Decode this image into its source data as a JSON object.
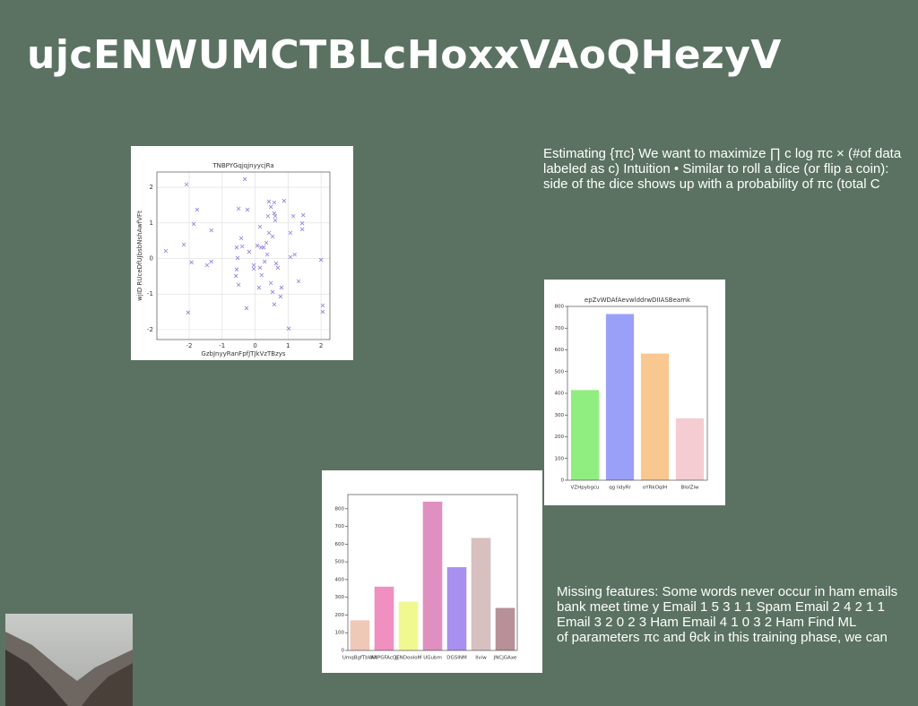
{
  "title": "ujcENWUMCTBLcHoxxVAoQHezyV",
  "paragraphs": [
    {
      "lines": [
        "Estimating {πc} We want to maximize ∏ c log πc × (#of data",
        "labeled as c) Intuition • Similar to roll a dice (or flip a coin):",
        "side of the dice shows up with a probability of πc (total C"
      ]
    },
    {
      "lines": [
        "Missing features: Some words never occur in ham emails",
        "bank meet time y Email 1 5 3 1 1 Spam Email 2 4 2 1 1",
        "Email 3 2 0 2 3 Ham Email 4 1 0 3 2 Ham Find ML",
        "of parameters πc and θck in this training phase, we can"
      ]
    }
  ],
  "chart_data": [
    {
      "type": "scatter",
      "title": "TNBPYGqjqjnyycjRa",
      "x_label": "GzbJnyyRanFpfJTJkVzTBzys",
      "y_label": "wjID RUceDfUJbsbNshAwfVFt",
      "color": "#8c7fe0",
      "grid": true,
      "xlim": [
        -2.98,
        2.27
      ],
      "ylim": [
        -2.28,
        2.43
      ],
      "xticks": [
        -2,
        -1,
        0,
        1,
        2
      ],
      "yticks": [
        -2,
        -1,
        0,
        1,
        2
      ],
      "x": [
        -2.08,
        -0.31,
        -2.71,
        -2.16,
        -1.86,
        -1.76,
        -1.93,
        -1.46,
        -1.33,
        -1.33,
        -2.03,
        -0.5,
        -0.23,
        -0.42,
        -0.39,
        -0.56,
        -0.53,
        -0.56,
        -0.58,
        -0.5,
        -0.18,
        -0.26,
        -0.04,
        -0.04,
        0.07,
        0.15,
        0.18,
        0.26,
        0.2,
        0.12,
        0.42,
        0.39,
        0.48,
        0.42,
        0.53,
        0.34,
        0.37,
        0.29,
        0.15,
        0.58,
        0.61,
        0.58,
        0.61,
        0.64,
        0.48,
        0.53,
        0.58,
        0.69,
        0.8,
        0.88,
        0.77,
        1.07,
        1.16,
        1.07,
        1.2,
        1.02,
        1.32,
        1.46,
        1.43,
        1.43,
        2.0,
        2.05,
        2.05
      ],
      "y": [
        2.08,
        2.23,
        0.21,
        0.39,
        0.97,
        1.37,
        -0.11,
        -0.19,
        -0.09,
        0.79,
        -1.52,
        1.4,
        1.37,
        0.57,
        0.34,
        0.31,
        0.01,
        -0.31,
        -0.49,
        -0.74,
        0.19,
        -1.4,
        -0.19,
        -0.29,
        0.36,
        0.89,
        0.31,
        0.31,
        -0.47,
        -0.82,
        1.6,
        1.19,
        1.45,
        0.72,
        0.62,
        0.44,
        0.11,
        -0.09,
        -0.26,
        1.57,
        1.19,
        1.27,
        1.07,
        -0.14,
        -0.69,
        -0.94,
        -1.29,
        -0.26,
        -0.82,
        1.62,
        -1.07,
        0.72,
        1.19,
        0.04,
        0.11,
        -1.97,
        -0.64,
        1.22,
        0.99,
        0.82,
        -0.04,
        -1.32,
        -1.5
      ]
    },
    {
      "type": "bar",
      "title": "epZvWDAfAevwlddrwDIIASBeamk",
      "categories": [
        "VZHpybgcu",
        "qg lidyRr",
        "oYRkOqIH",
        "BIolZiw"
      ],
      "values": [
        415,
        765,
        583,
        285
      ],
      "colors": [
        "#90ee80",
        "#9aa0f8",
        "#f8c890",
        "#f4ccd2"
      ],
      "ylim": [
        0,
        800
      ],
      "yticks": [
        0,
        100,
        200,
        300,
        400,
        500,
        600,
        700,
        800
      ]
    },
    {
      "type": "bar",
      "categories": [
        "UmqBgfTbWlY",
        "AAPGFAcOj",
        "JENDooloM",
        "UGubm",
        "DGSINM",
        "Ilviw",
        "JNCjGAxe"
      ],
      "values": [
        170,
        360,
        275,
        840,
        470,
        635,
        240
      ],
      "colors": [
        "#f0c8b8",
        "#f090c0",
        "#f0f890",
        "#e090c0",
        "#a890f0",
        "#d8c0c0",
        "#b89098"
      ],
      "ylim": [
        0,
        880
      ],
      "yticks": [
        0,
        100,
        200,
        300,
        400,
        500,
        600,
        700,
        800
      ]
    }
  ]
}
